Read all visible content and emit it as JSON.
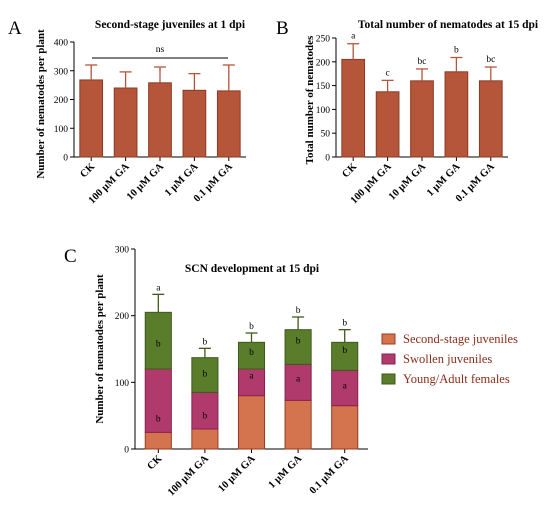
{
  "chart_data": [
    {
      "type": "bar",
      "panel_label": "A",
      "title": "Second-stage juveniles at 1 dpi",
      "ylabel": "Number of nematodes per plant",
      "xlabel": "",
      "categories": [
        "CK",
        "100 μM GA",
        "10 μM GA",
        "1 μM GA",
        "0.1 μM GA"
      ],
      "values": [
        268,
        240,
        258,
        232,
        230
      ],
      "errors": [
        52,
        56,
        55,
        58,
        90
      ],
      "ylim": [
        0,
        400
      ],
      "yticks": [
        0,
        100,
        200,
        300,
        400
      ],
      "annotation": "ns",
      "color": "#b5563a"
    },
    {
      "type": "bar",
      "panel_label": "B",
      "title": "Total number of nematodes at 15 dpi",
      "ylabel": "Total number of nematodes",
      "xlabel": "",
      "categories": [
        "CK",
        "100 μM GA",
        "10 μM GA",
        "1 μM GA",
        "0.1 μM GA"
      ],
      "values": [
        205,
        137,
        160,
        179,
        160
      ],
      "errors": [
        33,
        24,
        25,
        30,
        29
      ],
      "letters": [
        "a",
        "c",
        "bc",
        "b",
        "bc"
      ],
      "ylim": [
        0,
        250
      ],
      "yticks": [
        0,
        50,
        100,
        150,
        200,
        250
      ],
      "color": "#b5563a"
    },
    {
      "type": "bar",
      "stacked": true,
      "panel_label": "C",
      "title": "SCN development at 15 dpi",
      "ylabel": "Number of nematodes per plant",
      "xlabel": "",
      "categories": [
        "CK",
        "100 μM GA",
        "10 μM GA",
        "1 μM GA",
        "0.1 μM GA"
      ],
      "ylim": [
        0,
        300
      ],
      "yticks": [
        0,
        100,
        200,
        300
      ],
      "legend_position": "right",
      "series": [
        {
          "name": "Second-stage juveniles",
          "values": [
            25,
            30,
            80,
            73,
            65
          ],
          "errors": [
            10,
            10,
            20,
            22,
            20
          ],
          "letters": [
            "b",
            "b",
            "a",
            "a",
            "a"
          ],
          "color": "#d4744f",
          "edge": "#9a3a22"
        },
        {
          "name": "Swollen juveniles",
          "values": [
            95,
            55,
            40,
            54,
            53
          ],
          "errors": [
            28,
            18,
            15,
            25,
            20
          ],
          "letters": [
            "b",
            "b",
            "b",
            "b",
            "b"
          ],
          "color": "#b03a6c",
          "edge": "#8a2050"
        },
        {
          "name": "Young/Adult females",
          "values": [
            85,
            52,
            40,
            52,
            42
          ],
          "errors": [
            27,
            14,
            14,
            19,
            19
          ],
          "letters": [
            "a",
            "b",
            "b",
            "b",
            "b"
          ],
          "color": "#5a7d2c",
          "edge": "#3e5a1c"
        }
      ]
    }
  ]
}
